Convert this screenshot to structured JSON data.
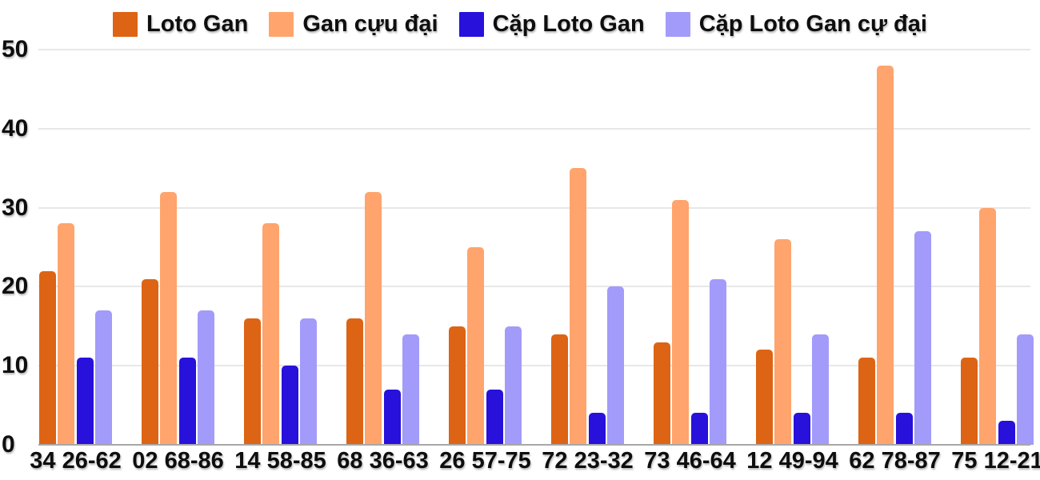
{
  "chart_data": {
    "type": "bar",
    "title": "",
    "xlabel": "",
    "ylabel": "",
    "categories": [
      "34 26-62",
      "02 68-86",
      "14 58-85",
      "68 36-63",
      "26 57-75",
      "72 23-32",
      "73 46-64",
      "12 49-94",
      "62 78-87",
      "75 12-21"
    ],
    "series": [
      {
        "name": "Loto Gan",
        "color": "#dd6414",
        "values": [
          22,
          21,
          16,
          16,
          15,
          14,
          13,
          12,
          11,
          11
        ]
      },
      {
        "name": "Gan cựu đại",
        "color": "#ffa46c",
        "values": [
          28,
          32,
          28,
          32,
          25,
          35,
          31,
          26,
          48,
          30
        ]
      },
      {
        "name": "Cặp Loto Gan",
        "color": "#2711db",
        "values": [
          11,
          11,
          10,
          7,
          7,
          4,
          4,
          4,
          4,
          3
        ]
      },
      {
        "name": "Cặp Loto Gan cự đại",
        "color": "#a29bfa",
        "values": [
          17,
          17,
          16,
          14,
          15,
          20,
          21,
          14,
          27,
          14
        ]
      }
    ],
    "ylim": [
      0,
      50
    ],
    "yticks": [
      0,
      10,
      20,
      30,
      40,
      50
    ],
    "grid": true,
    "legend_position": "top",
    "background_color": "#ffffff",
    "gridline_color": "#e7e7e7",
    "axis_line_color": "#a8a8a8",
    "label_color": "#0e0e0e"
  }
}
